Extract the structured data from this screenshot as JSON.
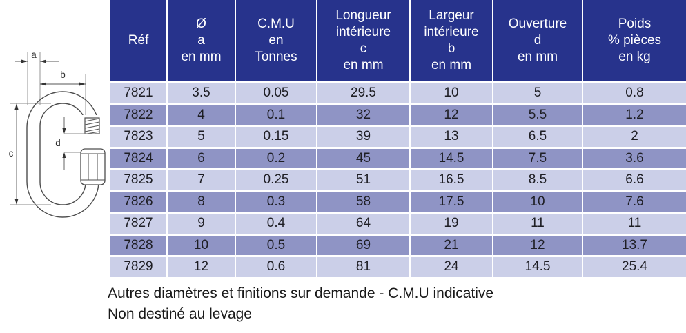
{
  "diagram": {
    "description": "technical-drawing-quick-link",
    "labels": {
      "a": "a",
      "b": "b",
      "c": "c",
      "d": "d"
    }
  },
  "table": {
    "headers": [
      "Réf",
      "Ø\na\nen mm",
      "C.M.U\nen\nTonnes",
      "Longueur\nintérieure\nc\nen mm",
      "Largeur\nintérieure\nb\nen mm",
      "Ouverture\nd\nen mm",
      "Poids\n% pièces\nen kg"
    ],
    "rows": [
      [
        "7821",
        "3.5",
        "0.05",
        "29.5",
        "10",
        "5",
        "0.8"
      ],
      [
        "7822",
        "4",
        "0.1",
        "32",
        "12",
        "5.5",
        "1.2"
      ],
      [
        "7823",
        "5",
        "0.15",
        "39",
        "13",
        "6.5",
        "2"
      ],
      [
        "7824",
        "6",
        "0.2",
        "45",
        "14.5",
        "7.5",
        "3.6"
      ],
      [
        "7825",
        "7",
        "0.25",
        "51",
        "16.5",
        "8.5",
        "6.6"
      ],
      [
        "7826",
        "8",
        "0.3",
        "58",
        "17.5",
        "10",
        "7.6"
      ],
      [
        "7827",
        "9",
        "0.4",
        "64",
        "19",
        "11",
        "11"
      ],
      [
        "7828",
        "10",
        "0.5",
        "69",
        "21",
        "12",
        "13.7"
      ],
      [
        "7829",
        "12",
        "0.6",
        "81",
        "24",
        "14.5",
        "25.4"
      ]
    ]
  },
  "footer": {
    "line1": "Autres diamètres et finitions sur demande - C.M.U indicative",
    "line2": "Non destiné au levage"
  },
  "colors": {
    "header_bg": "#27338c",
    "row_light": "#cbcfe8",
    "row_dark": "#8f94c5",
    "header_text": "#ffffff",
    "cell_text": "#1e1e24",
    "drawing_stroke": "#4d4d4d"
  }
}
